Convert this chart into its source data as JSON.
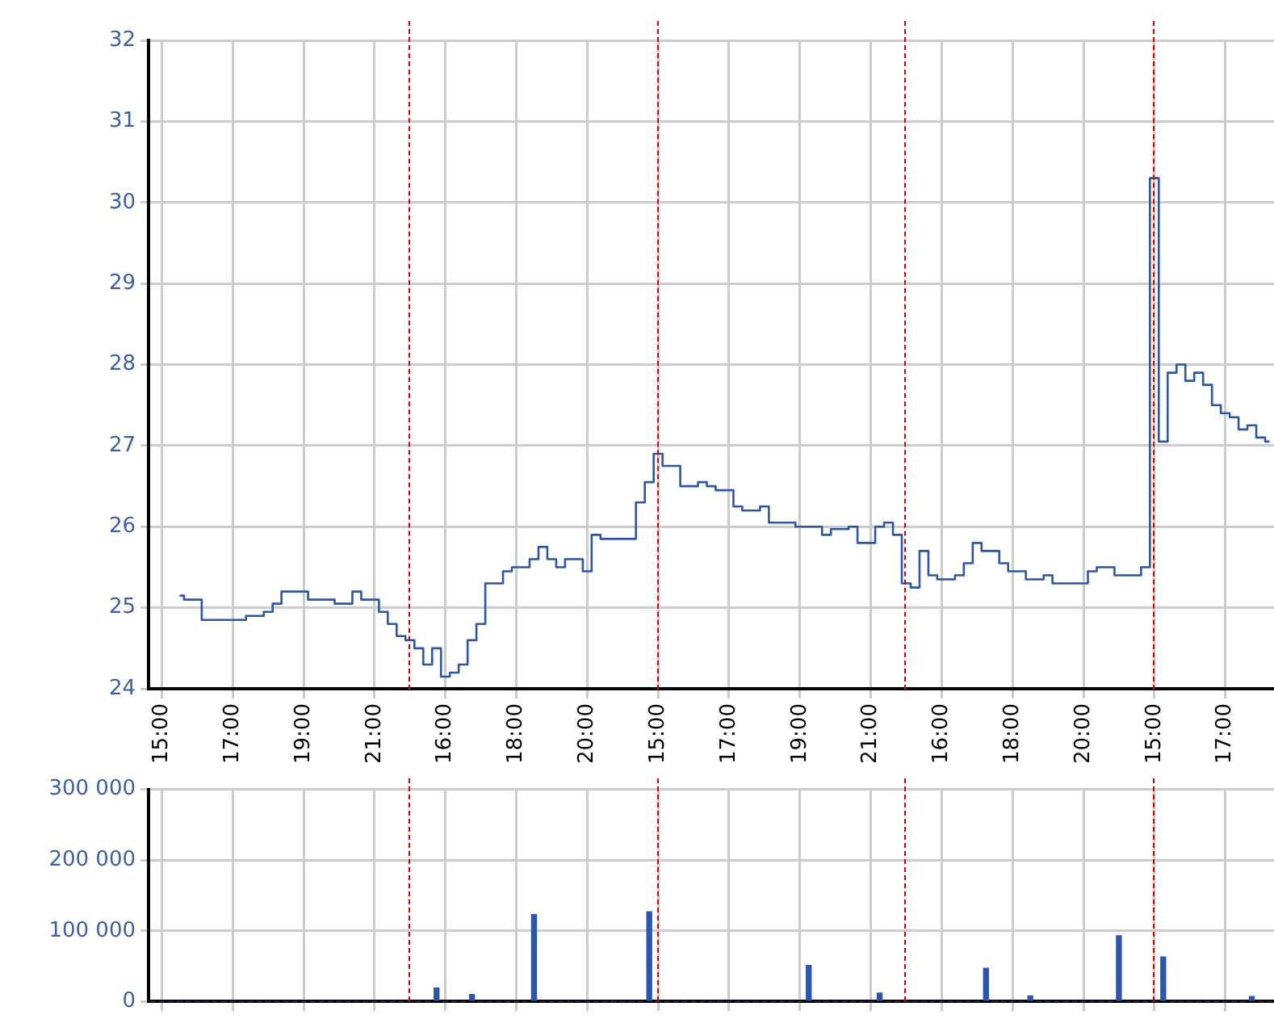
{
  "chart_data": [
    {
      "type": "step",
      "ylim": [
        24,
        32
      ],
      "yticks": [
        24,
        25,
        26,
        27,
        28,
        29,
        30,
        31,
        32
      ],
      "categories": [
        null,
        "15:00",
        null,
        null,
        null,
        null,
        null,
        null,
        null,
        "17:00",
        null,
        null,
        null,
        null,
        null,
        null,
        null,
        "19:00",
        null,
        null,
        null,
        null,
        null,
        null,
        null,
        "21:00",
        null,
        null,
        null,
        null,
        null,
        null,
        null,
        "16:00",
        null,
        null,
        null,
        null,
        null,
        null,
        null,
        "18:00",
        null,
        null,
        null,
        null,
        null,
        null,
        null,
        "20:00",
        null,
        null,
        null,
        null,
        null,
        null,
        null,
        "15:00",
        null,
        null,
        null,
        null,
        null,
        null,
        null,
        "17:00",
        null,
        null,
        null,
        null,
        null,
        null,
        null,
        "19:00",
        null,
        null,
        null,
        null,
        null,
        null,
        null,
        "21:00",
        null,
        null,
        null,
        null,
        null,
        null,
        null,
        "16:00",
        null,
        null,
        null,
        null,
        null,
        null,
        null,
        "18:00",
        null,
        null,
        null,
        null,
        null,
        null,
        null,
        "20:00",
        null,
        null,
        null,
        null,
        null,
        null,
        null,
        "15:00",
        null,
        null,
        null,
        null,
        null,
        null,
        null,
        "17:00",
        null,
        null,
        null,
        null,
        null
      ],
      "grid": true,
      "legend": false,
      "line_style": "solid",
      "marker": "none",
      "series": [
        {
          "color": "#2a55b0",
          "values": [
            null,
            null,
            null,
            25.15,
            25.1,
            25.1,
            24.85,
            24.85,
            24.85,
            24.85,
            24.85,
            24.9,
            24.9,
            24.95,
            25.05,
            25.2,
            25.2,
            25.2,
            25.1,
            25.1,
            25.1,
            25.05,
            25.05,
            25.2,
            25.1,
            25.1,
            24.95,
            24.8,
            24.65,
            24.6,
            24.5,
            24.3,
            24.5,
            24.15,
            24.2,
            24.3,
            24.6,
            24.8,
            25.3,
            25.3,
            25.45,
            25.5,
            25.5,
            25.6,
            25.75,
            25.6,
            25.5,
            25.6,
            25.6,
            25.45,
            25.9,
            25.85,
            25.85,
            25.85,
            25.85,
            26.3,
            26.55,
            26.9,
            26.75,
            26.75,
            26.5,
            26.5,
            26.55,
            26.5,
            26.45,
            26.45,
            26.25,
            26.2,
            26.2,
            26.25,
            26.05,
            26.05,
            26.05,
            26.0,
            26.0,
            26.0,
            25.9,
            25.97,
            25.97,
            26.0,
            25.8,
            25.8,
            26.0,
            26.05,
            25.9,
            25.3,
            25.25,
            25.7,
            25.4,
            25.35,
            25.35,
            25.4,
            25.55,
            25.8,
            25.7,
            25.7,
            25.55,
            25.45,
            25.45,
            25.35,
            25.35,
            25.4,
            25.3,
            25.3,
            25.3,
            25.3,
            25.45,
            25.5,
            25.5,
            25.4,
            25.4,
            25.4,
            25.5,
            30.3,
            27.05,
            27.9,
            28.0,
            27.8,
            27.9,
            27.75,
            27.5,
            27.4,
            27.35,
            27.2,
            27.25,
            27.1,
            27.05
          ]
        }
      ]
    },
    {
      "type": "bar",
      "ylim": [
        0,
        300000
      ],
      "yticks": [
        {
          "value": 0,
          "label": "0"
        },
        {
          "value": 100000,
          "label": "100 000"
        },
        {
          "value": 200000,
          "label": "200 000"
        },
        {
          "value": 300000,
          "label": "300 000"
        }
      ],
      "categories": [
        null,
        null,
        null,
        null,
        null,
        null,
        null,
        null,
        null,
        null,
        null,
        null,
        null,
        null,
        null,
        null,
        null,
        null,
        null,
        null,
        null,
        null,
        null,
        null,
        null,
        null,
        null,
        null,
        null,
        null,
        null,
        null,
        null,
        null,
        null,
        null,
        null,
        null,
        null,
        null,
        null,
        null,
        null,
        null,
        null,
        null,
        null,
        null,
        null,
        null,
        null,
        null,
        null,
        null,
        null,
        null,
        null,
        null,
        null,
        null,
        null,
        null,
        null,
        null,
        null,
        null,
        null,
        null,
        null,
        null,
        null,
        null,
        null,
        null,
        null,
        null,
        null,
        null,
        null,
        null,
        null,
        null,
        null,
        null,
        null,
        null,
        null,
        null,
        null,
        null,
        null,
        null,
        null,
        null,
        null,
        null,
        null,
        null,
        null,
        null,
        null,
        null,
        null,
        null,
        null,
        null,
        null,
        null,
        null,
        null,
        null,
        null,
        null,
        null,
        null,
        null,
        null,
        null,
        null,
        null,
        null,
        null,
        null,
        null,
        null,
        null,
        null
      ],
      "tick_labels": "y",
      "grid": true,
      "legend": false,
      "series": [
        {
          "color": "#2a55b0",
          "values": [
            0,
            0,
            0,
            0,
            0,
            0,
            0,
            0,
            0,
            0,
            0,
            0,
            0,
            0,
            0,
            0,
            0,
            0,
            0,
            0,
            0,
            0,
            0,
            0,
            0,
            0,
            0,
            0,
            0,
            0,
            0,
            0,
            19000,
            0,
            0,
            0,
            10000,
            0,
            0,
            0,
            0,
            0,
            0,
            123000,
            0,
            0,
            0,
            0,
            0,
            0,
            0,
            0,
            0,
            0,
            0,
            0,
            127000,
            0,
            0,
            0,
            0,
            0,
            0,
            0,
            0,
            0,
            0,
            0,
            0,
            0,
            0,
            0,
            0,
            0,
            51000,
            0,
            0,
            0,
            0,
            0,
            0,
            0,
            12000,
            0,
            0,
            0,
            0,
            0,
            0,
            0,
            0,
            0,
            0,
            0,
            47000,
            0,
            0,
            0,
            0,
            8000,
            0,
            0,
            0,
            0,
            0,
            0,
            0,
            0,
            0,
            93000,
            0,
            0,
            0,
            0,
            63000,
            0,
            0,
            0,
            0,
            0,
            0,
            0,
            0,
            0,
            7000,
            0,
            0
          ]
        }
      ]
    }
  ]
}
